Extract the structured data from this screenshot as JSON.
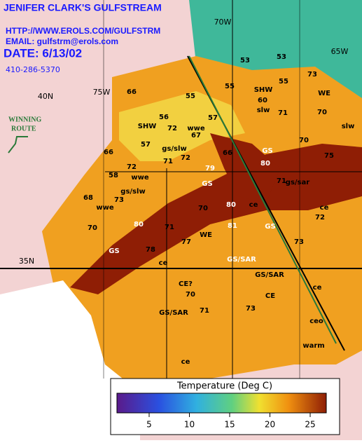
{
  "header": {
    "title": "JENIFER CLARK'S GULFSTREAM",
    "url": "HTTP://WWW.EROLS.COM/GULFSTRM",
    "email": "EMAIL:  gulfstrm@erols.com",
    "date": "DATE:  6/13/02",
    "phone": "410-286-5370"
  },
  "route_label": [
    "WINNING",
    "ROUTE"
  ],
  "grid_labels": [
    "70W",
    "65W",
    "75W",
    "40N",
    "35N"
  ],
  "map_labels": [
    "66",
    "55",
    "53",
    "53",
    "55",
    "55",
    "SHW",
    "73",
    "WE",
    "70",
    "56",
    "57",
    "60",
    "slw",
    "71",
    "70",
    "slw",
    "SHW",
    "57",
    "72",
    "wwe",
    "67",
    "gs/slw",
    "66",
    "71",
    "72",
    "66",
    "GS",
    "80",
    "79",
    "GS",
    "58",
    "72",
    "wwe",
    "gs/slw",
    "73",
    "68",
    "wwe",
    "71",
    "gs/sar",
    "75",
    "70",
    "80",
    "ce",
    "ce",
    "72",
    "70",
    "80",
    "71",
    "81",
    "GS",
    "WE",
    "77",
    "GS",
    "78",
    "ce",
    "GS/SAR",
    "73",
    "GS/SAR",
    "CE?",
    "70",
    "GS/SAR",
    "71",
    "73",
    "CE",
    "ce",
    "ceo",
    "warm",
    "ce"
  ],
  "colorbar": {
    "title": "Temperature (Deg C)",
    "ticks": [
      5,
      10,
      15,
      20,
      25
    ],
    "lim": [
      1,
      27
    ]
  }
}
